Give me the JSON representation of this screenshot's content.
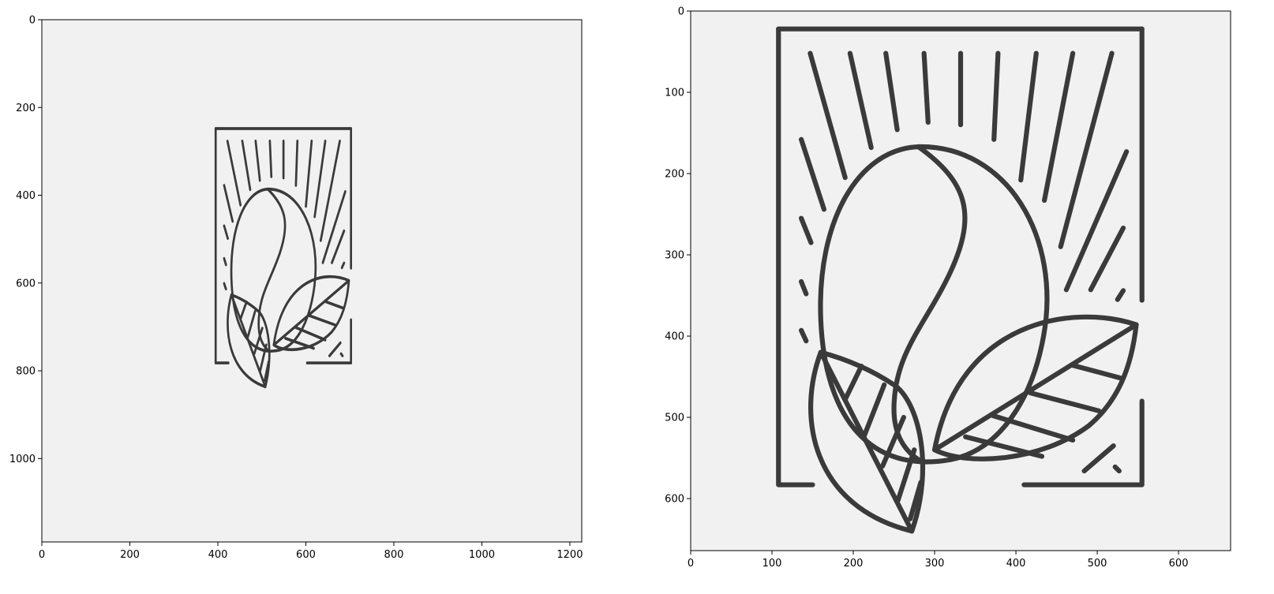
{
  "colors": {
    "image_background": "#f1f1f1",
    "line_art": "#3a3a3a",
    "axes_frame": "#000000"
  },
  "panels": [
    {
      "id": "left",
      "image_size": [
        1227,
        1190
      ],
      "xlim": [
        0,
        1227
      ],
      "ylim": [
        1190,
        0
      ],
      "x_ticks": [
        0,
        200,
        400,
        600,
        800,
        1000,
        1200
      ],
      "y_ticks": [
        0,
        200,
        400,
        600,
        800,
        1000
      ],
      "x_tick_labels": [
        "0",
        "200",
        "400",
        "600",
        "800",
        "1000",
        "1200"
      ],
      "y_tick_labels": [
        "0",
        "200",
        "400",
        "600",
        "800",
        "1000"
      ]
    },
    {
      "id": "right",
      "image_size": [
        664,
        664
      ],
      "xlim": [
        0,
        664
      ],
      "ylim": [
        664,
        0
      ],
      "x_ticks": [
        0,
        100,
        200,
        300,
        400,
        500,
        600
      ],
      "y_ticks": [
        0,
        100,
        200,
        300,
        400,
        500,
        600
      ],
      "x_tick_labels": [
        "0",
        "100",
        "200",
        "300",
        "400",
        "500",
        "600"
      ],
      "y_tick_labels": [
        "0",
        "100",
        "200",
        "300",
        "400",
        "500",
        "600"
      ]
    }
  ],
  "artwork": {
    "subject": "coffee bean with two leaves inside a frame with sun rays",
    "icon_name": "coffee-bean-leaves-icon"
  }
}
